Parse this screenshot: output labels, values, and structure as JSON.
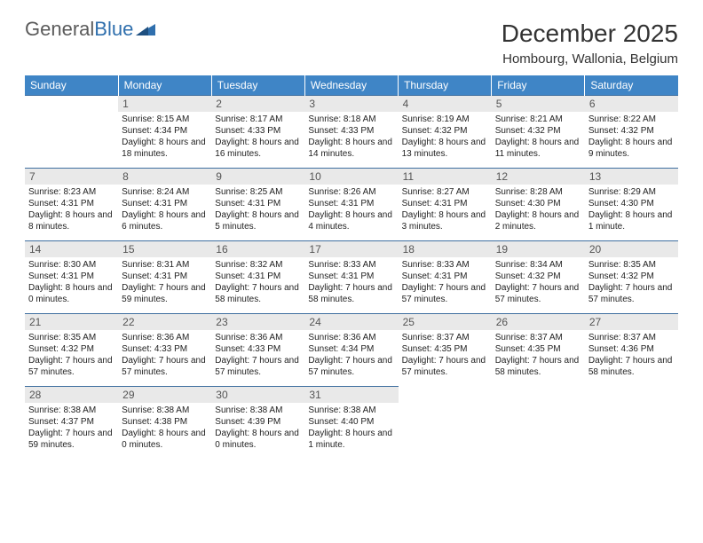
{
  "logo": {
    "text1": "General",
    "text2": "Blue"
  },
  "header": {
    "month_title": "December 2025",
    "location": "Hombourg, Wallonia, Belgium"
  },
  "colors": {
    "header_bg": "#3f85c6",
    "header_fg": "#ffffff",
    "daynum_bg": "#e9e9e9",
    "rule": "#3f6fa0",
    "logo_gray": "#5b5b5b",
    "logo_blue": "#2f6fad"
  },
  "columns": [
    "Sunday",
    "Monday",
    "Tuesday",
    "Wednesday",
    "Thursday",
    "Friday",
    "Saturday"
  ],
  "weeks": [
    [
      {
        "num": "",
        "sunrise": "",
        "sunset": "",
        "daylight": ""
      },
      {
        "num": "1",
        "sunrise": "Sunrise: 8:15 AM",
        "sunset": "Sunset: 4:34 PM",
        "daylight": "Daylight: 8 hours and 18 minutes."
      },
      {
        "num": "2",
        "sunrise": "Sunrise: 8:17 AM",
        "sunset": "Sunset: 4:33 PM",
        "daylight": "Daylight: 8 hours and 16 minutes."
      },
      {
        "num": "3",
        "sunrise": "Sunrise: 8:18 AM",
        "sunset": "Sunset: 4:33 PM",
        "daylight": "Daylight: 8 hours and 14 minutes."
      },
      {
        "num": "4",
        "sunrise": "Sunrise: 8:19 AM",
        "sunset": "Sunset: 4:32 PM",
        "daylight": "Daylight: 8 hours and 13 minutes."
      },
      {
        "num": "5",
        "sunrise": "Sunrise: 8:21 AM",
        "sunset": "Sunset: 4:32 PM",
        "daylight": "Daylight: 8 hours and 11 minutes."
      },
      {
        "num": "6",
        "sunrise": "Sunrise: 8:22 AM",
        "sunset": "Sunset: 4:32 PM",
        "daylight": "Daylight: 8 hours and 9 minutes."
      }
    ],
    [
      {
        "num": "7",
        "sunrise": "Sunrise: 8:23 AM",
        "sunset": "Sunset: 4:31 PM",
        "daylight": "Daylight: 8 hours and 8 minutes."
      },
      {
        "num": "8",
        "sunrise": "Sunrise: 8:24 AM",
        "sunset": "Sunset: 4:31 PM",
        "daylight": "Daylight: 8 hours and 6 minutes."
      },
      {
        "num": "9",
        "sunrise": "Sunrise: 8:25 AM",
        "sunset": "Sunset: 4:31 PM",
        "daylight": "Daylight: 8 hours and 5 minutes."
      },
      {
        "num": "10",
        "sunrise": "Sunrise: 8:26 AM",
        "sunset": "Sunset: 4:31 PM",
        "daylight": "Daylight: 8 hours and 4 minutes."
      },
      {
        "num": "11",
        "sunrise": "Sunrise: 8:27 AM",
        "sunset": "Sunset: 4:31 PM",
        "daylight": "Daylight: 8 hours and 3 minutes."
      },
      {
        "num": "12",
        "sunrise": "Sunrise: 8:28 AM",
        "sunset": "Sunset: 4:30 PM",
        "daylight": "Daylight: 8 hours and 2 minutes."
      },
      {
        "num": "13",
        "sunrise": "Sunrise: 8:29 AM",
        "sunset": "Sunset: 4:30 PM",
        "daylight": "Daylight: 8 hours and 1 minute."
      }
    ],
    [
      {
        "num": "14",
        "sunrise": "Sunrise: 8:30 AM",
        "sunset": "Sunset: 4:31 PM",
        "daylight": "Daylight: 8 hours and 0 minutes."
      },
      {
        "num": "15",
        "sunrise": "Sunrise: 8:31 AM",
        "sunset": "Sunset: 4:31 PM",
        "daylight": "Daylight: 7 hours and 59 minutes."
      },
      {
        "num": "16",
        "sunrise": "Sunrise: 8:32 AM",
        "sunset": "Sunset: 4:31 PM",
        "daylight": "Daylight: 7 hours and 58 minutes."
      },
      {
        "num": "17",
        "sunrise": "Sunrise: 8:33 AM",
        "sunset": "Sunset: 4:31 PM",
        "daylight": "Daylight: 7 hours and 58 minutes."
      },
      {
        "num": "18",
        "sunrise": "Sunrise: 8:33 AM",
        "sunset": "Sunset: 4:31 PM",
        "daylight": "Daylight: 7 hours and 57 minutes."
      },
      {
        "num": "19",
        "sunrise": "Sunrise: 8:34 AM",
        "sunset": "Sunset: 4:32 PM",
        "daylight": "Daylight: 7 hours and 57 minutes."
      },
      {
        "num": "20",
        "sunrise": "Sunrise: 8:35 AM",
        "sunset": "Sunset: 4:32 PM",
        "daylight": "Daylight: 7 hours and 57 minutes."
      }
    ],
    [
      {
        "num": "21",
        "sunrise": "Sunrise: 8:35 AM",
        "sunset": "Sunset: 4:32 PM",
        "daylight": "Daylight: 7 hours and 57 minutes."
      },
      {
        "num": "22",
        "sunrise": "Sunrise: 8:36 AM",
        "sunset": "Sunset: 4:33 PM",
        "daylight": "Daylight: 7 hours and 57 minutes."
      },
      {
        "num": "23",
        "sunrise": "Sunrise: 8:36 AM",
        "sunset": "Sunset: 4:33 PM",
        "daylight": "Daylight: 7 hours and 57 minutes."
      },
      {
        "num": "24",
        "sunrise": "Sunrise: 8:36 AM",
        "sunset": "Sunset: 4:34 PM",
        "daylight": "Daylight: 7 hours and 57 minutes."
      },
      {
        "num": "25",
        "sunrise": "Sunrise: 8:37 AM",
        "sunset": "Sunset: 4:35 PM",
        "daylight": "Daylight: 7 hours and 57 minutes."
      },
      {
        "num": "26",
        "sunrise": "Sunrise: 8:37 AM",
        "sunset": "Sunset: 4:35 PM",
        "daylight": "Daylight: 7 hours and 58 minutes."
      },
      {
        "num": "27",
        "sunrise": "Sunrise: 8:37 AM",
        "sunset": "Sunset: 4:36 PM",
        "daylight": "Daylight: 7 hours and 58 minutes."
      }
    ],
    [
      {
        "num": "28",
        "sunrise": "Sunrise: 8:38 AM",
        "sunset": "Sunset: 4:37 PM",
        "daylight": "Daylight: 7 hours and 59 minutes."
      },
      {
        "num": "29",
        "sunrise": "Sunrise: 8:38 AM",
        "sunset": "Sunset: 4:38 PM",
        "daylight": "Daylight: 8 hours and 0 minutes."
      },
      {
        "num": "30",
        "sunrise": "Sunrise: 8:38 AM",
        "sunset": "Sunset: 4:39 PM",
        "daylight": "Daylight: 8 hours and 0 minutes."
      },
      {
        "num": "31",
        "sunrise": "Sunrise: 8:38 AM",
        "sunset": "Sunset: 4:40 PM",
        "daylight": "Daylight: 8 hours and 1 minute."
      },
      {
        "num": "",
        "sunrise": "",
        "sunset": "",
        "daylight": ""
      },
      {
        "num": "",
        "sunrise": "",
        "sunset": "",
        "daylight": ""
      },
      {
        "num": "",
        "sunrise": "",
        "sunset": "",
        "daylight": ""
      }
    ]
  ]
}
